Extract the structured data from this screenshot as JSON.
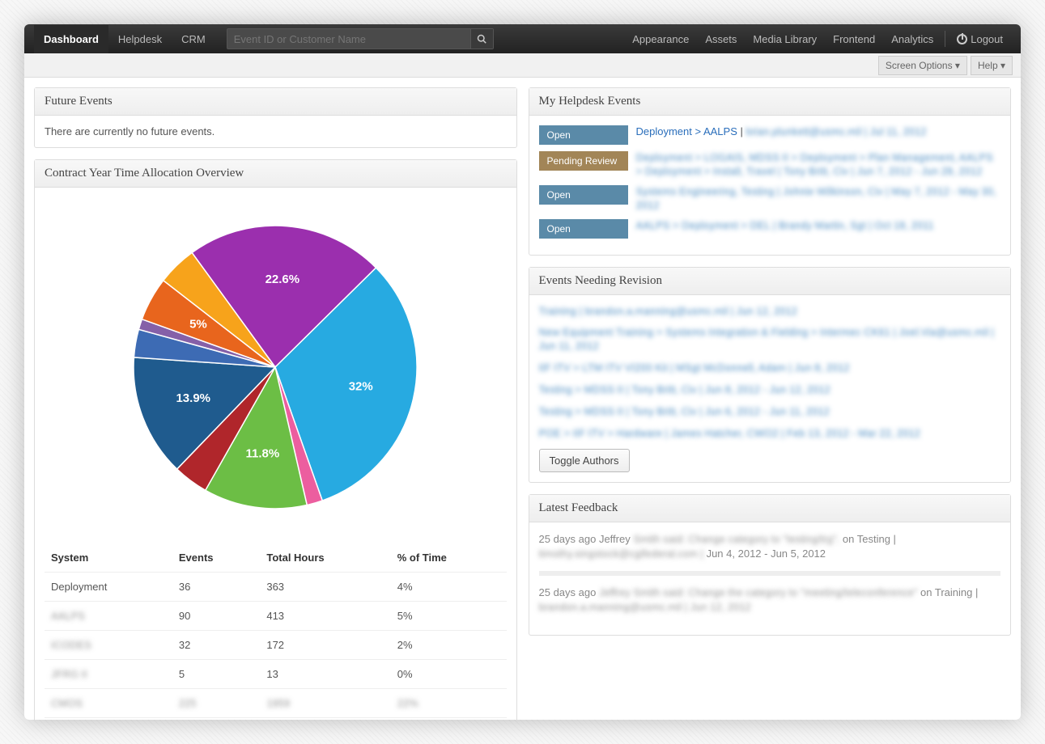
{
  "topbar": {
    "menu_left": [
      "Dashboard",
      "Helpdesk",
      "CRM"
    ],
    "active_index": 0,
    "search_placeholder": "Event ID or Customer Name",
    "menu_right": [
      "Appearance",
      "Assets",
      "Media Library",
      "Frontend",
      "Analytics"
    ],
    "logout_label": "Logout"
  },
  "subbar": {
    "screen_options": "Screen Options ▾",
    "help": "Help ▾"
  },
  "future_events": {
    "title": "Future Events",
    "empty_text": "There are currently no future events."
  },
  "allocation": {
    "title": "Contract Year Time Allocation Overview",
    "pie": {
      "type": "pie",
      "radius": 175,
      "slices": [
        {
          "label": "22.6%",
          "value": 22.6,
          "color": "#9b2fae",
          "show_label": true
        },
        {
          "label": "32%",
          "value": 32.0,
          "color": "#27aae1",
          "show_label": true
        },
        {
          "label": "",
          "value": 1.8,
          "color": "#ec5e9f",
          "show_label": false
        },
        {
          "label": "11.8%",
          "value": 11.8,
          "color": "#6cbe45",
          "show_label": true
        },
        {
          "label": "",
          "value": 4.0,
          "color": "#b0262b",
          "show_label": false
        },
        {
          "label": "13.9%",
          "value": 13.9,
          "color": "#1f5b8e",
          "show_label": true
        },
        {
          "label": "",
          "value": 3.2,
          "color": "#3d6bb4",
          "show_label": false
        },
        {
          "label": "",
          "value": 1.2,
          "color": "#8560a8",
          "show_label": false
        },
        {
          "label": "5%",
          "value": 5.0,
          "color": "#e8651d",
          "show_label": true
        },
        {
          "label": "",
          "value": 4.5,
          "color": "#f7a31b",
          "show_label": false
        }
      ],
      "label_color": "#ffffff",
      "label_fontsize": 15,
      "start_angle_deg": -36
    },
    "table": {
      "columns": [
        "System",
        "Events",
        "Total Hours",
        "% of Time"
      ],
      "rows": [
        {
          "cells": [
            "Deployment",
            "36",
            "363",
            "4%"
          ],
          "blurred": [
            false,
            false,
            false,
            false
          ]
        },
        {
          "cells": [
            "AALPS",
            "90",
            "413",
            "5%"
          ],
          "blurred": [
            true,
            false,
            false,
            false
          ]
        },
        {
          "cells": [
            "ICODES",
            "32",
            "172",
            "2%"
          ],
          "blurred": [
            true,
            false,
            false,
            false
          ]
        },
        {
          "cells": [
            "JFRG II",
            "5",
            "13",
            "0%"
          ],
          "blurred": [
            true,
            false,
            false,
            false
          ]
        },
        {
          "cells": [
            "CMOS",
            "225",
            "1959",
            "22%"
          ],
          "blurred": [
            true,
            true,
            true,
            true
          ]
        }
      ]
    }
  },
  "helpdesk": {
    "title": "My Helpdesk Events",
    "items": [
      {
        "status": "Open",
        "status_class": "status-open",
        "prefix_link": "Deployment > AALPS",
        "sep": " | ",
        "rest": "brian.plunkett@usmc.mil | Jul 11, 2012"
      },
      {
        "status": "Pending Review",
        "status_class": "status-pending",
        "prefix_link": "",
        "sep": "",
        "rest": "Deployment > LOGAIS, MDSS II > Deployment > Plan Management, AALPS > Deployment > Install, Travel | Tony Britt, Civ | Jun 7, 2012 - Jun 28, 2012"
      },
      {
        "status": "Open",
        "status_class": "status-open",
        "prefix_link": "",
        "sep": "",
        "rest": "Systems Engineering, Testing | Johnie Wilkinson, Civ | May 7, 2012 - May 30, 2012"
      },
      {
        "status": "Open",
        "status_class": "status-open",
        "prefix_link": "",
        "sep": "",
        "rest": "AALPS > Deployment > DEL | Brandy Martin, Sgt | Oct 18, 2011"
      }
    ]
  },
  "revision": {
    "title": "Events Needing Revision",
    "items": [
      "Training | brandon.a.manning@usmc.mil | Jun 12, 2012",
      "New Equipment Training > Systems Integration & Fielding > Intermec CK61 | Joel.Via@usmc.mil | Jun 11, 2012",
      "IIF ITV > LTM ITV VI200 Kit | MSgt McDonnell, Adam | Jun 8, 2012",
      "Testing > MDSS II | Tony Britt, Civ | Jun 8, 2012 - Jun 12, 2012",
      "Testing > MDSS II | Tony Britt, Civ | Jun 6, 2012 - Jun 11, 2012",
      "POE > IIF ITV > Hardware | James Hatcher, CWO2 | Feb 13, 2012 - Mar 22, 2012"
    ],
    "toggle_btn": "Toggle Authors"
  },
  "feedback": {
    "title": "Latest Feedback",
    "items": [
      {
        "age": "25 days ago ",
        "author": "Jeffrey ",
        "author_blur": "Smith said: ",
        "msg": "Change category to \"testing/trg\". ",
        "on": " on Testing | ",
        "tail_blur": "timothy.singstock@cgifederal.com | ",
        "dates": "Jun 4, 2012 - Jun 5, 2012"
      },
      {
        "age": "25 days ago ",
        "author": "",
        "author_blur": "Jeffrey Smith said: ",
        "msg": "Change the category to \"meeting/teleconference\" ",
        "on": " on ",
        "tail_blur": "",
        "dates": "Training | brandon.a.manning@usmc.mil | Jun 12, 2012"
      }
    ]
  }
}
